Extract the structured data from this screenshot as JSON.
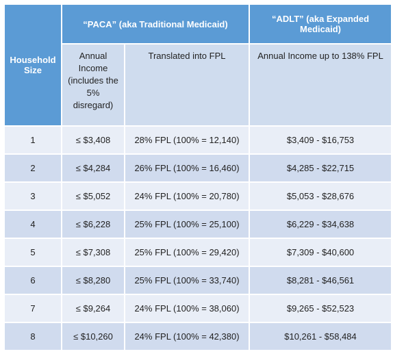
{
  "header": {
    "household_size": "Household Size",
    "paca": "“PACA” (aka Traditional Medicaid)",
    "adlt": "“ADLT” (aka Expanded Medicaid)",
    "annual_income": "Annual Income (includes the 5% disregard)",
    "translated": "Translated into FPL",
    "adlt_income": "Annual Income up to 138% FPL"
  },
  "table": {
    "rows": [
      [
        "1",
        "≤ $3,408",
        "28% FPL (100% = 12,140)",
        "$3,409 - $16,753"
      ],
      [
        "2",
        "≤ $4,284",
        "26% FPL (100% = 16,460)",
        "$4,285 - $22,715"
      ],
      [
        "3",
        "≤ $5,052",
        "24% FPL (100% = 20,780)",
        "$5,053 - $28,676"
      ],
      [
        "4",
        "≤ $6,228",
        "25% FPL (100% = 25,100)",
        "$6,229 - $34,638"
      ],
      [
        "5",
        "≤ $7,308",
        "25% FPL (100% = 29,420)",
        "$7,309 - $40,600"
      ],
      [
        "6",
        "≤ $8,280",
        "25% FPL (100% = 33,740)",
        "$8,281 - $46,561"
      ],
      [
        "7",
        "≤ $9,264",
        "24% FPL (100% = 38,060)",
        "$9,265 - $52,523"
      ],
      [
        "8",
        "≤ $10,260",
        "24% FPL (100% = 42,380)",
        "$10,261 - $58,484"
      ]
    ]
  }
}
